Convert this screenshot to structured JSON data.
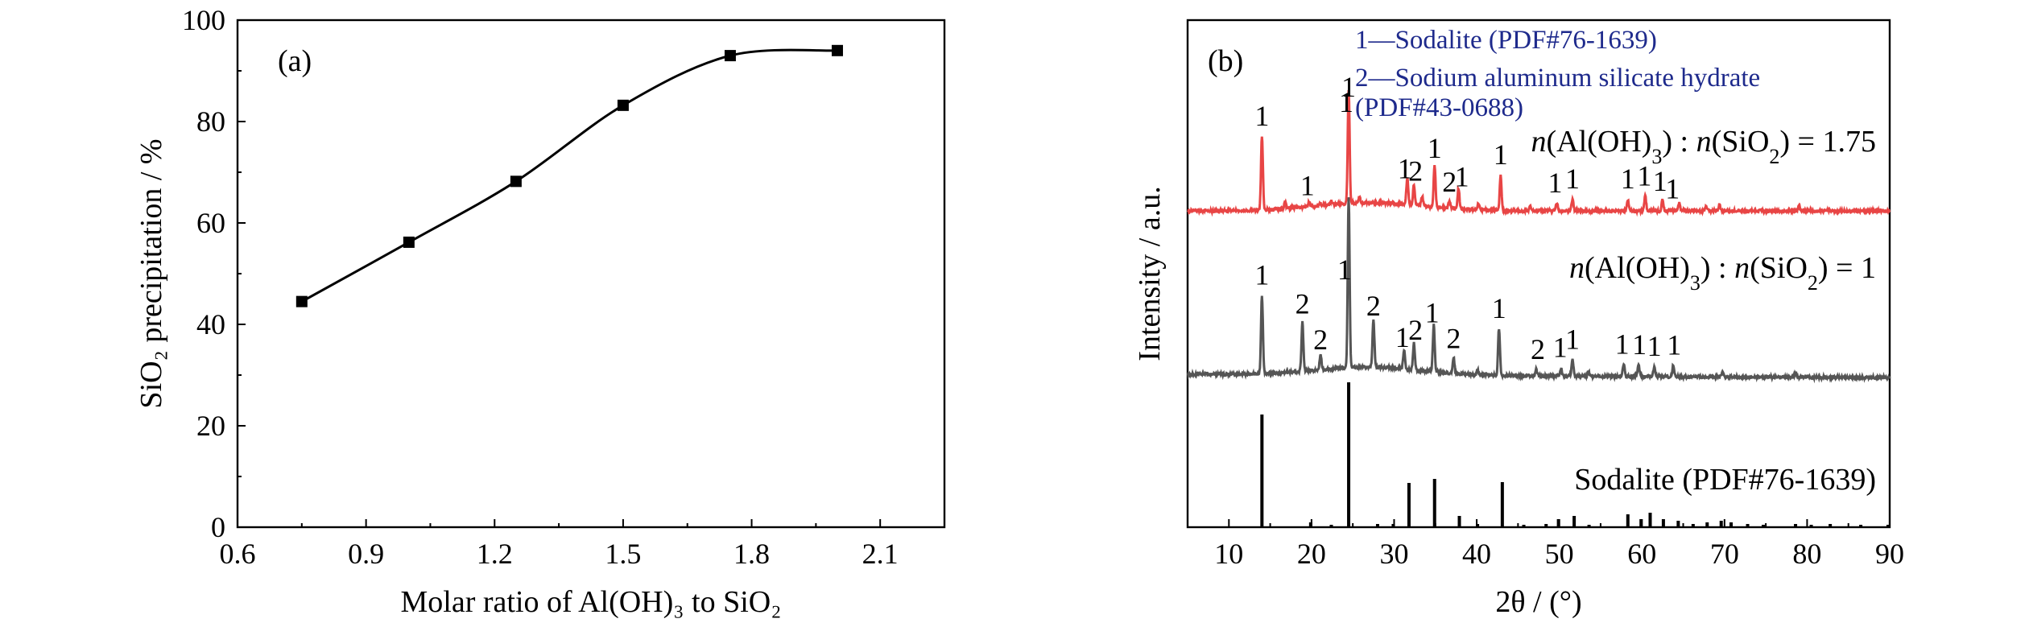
{
  "chart_data": [
    {
      "type": "line",
      "panel_label": "(a)",
      "xlabel": "Molar ratio of Al(OH)₃ to SiO₂",
      "ylabel": "SiO₂ precipitation / %",
      "xlim": [
        0.6,
        2.25
      ],
      "ylim": [
        0,
        100
      ],
      "xticks": [
        "0.6",
        "0.9",
        "1.2",
        "1.5",
        "1.8",
        "2.1"
      ],
      "yticks": [
        "0",
        "20",
        "40",
        "60",
        "80",
        "100"
      ],
      "x": [
        0.75,
        1.0,
        1.25,
        1.5,
        1.75,
        2.0
      ],
      "values": [
        44.5,
        56.2,
        68.2,
        83.2,
        93.0,
        94.0
      ],
      "marker": "square",
      "fit_curve": "smooth",
      "line_color": "#000000"
    },
    {
      "type": "line",
      "panel_label": "(b)",
      "xlabel": "2θ / (°)",
      "ylabel": "Intensity / a.u.",
      "xlim": [
        5,
        90
      ],
      "xticks": [
        "10",
        "20",
        "30",
        "40",
        "50",
        "60",
        "70",
        "80",
        "90"
      ],
      "legend": [
        "1—Sodalite (PDF#76-1639)",
        "2—Sodium aluminum silicate hydrate",
        "(PDF#43-0688)"
      ],
      "legend_color": "#1e2a8c",
      "series": [
        {
          "label_prefix": "n",
          "label_main": "(Al(OH)",
          "label_sub": "3",
          "label_mid": ") : ",
          "label_prefix2": "n",
          "label_main2": "(SiO",
          "label_sub2": "2",
          "label_end": ") = 1.75",
          "color": "#e84545",
          "peaks": [
            [
              14.0,
              92
            ],
            [
              16.8,
              8
            ],
            [
              19.7,
              6
            ],
            [
              21.0,
              4
            ],
            [
              22.4,
              5
            ],
            [
              24.5,
              140
            ],
            [
              25.8,
              8
            ],
            [
              31.6,
              34
            ],
            [
              32.4,
              26
            ],
            [
              33.4,
              12
            ],
            [
              34.9,
              52
            ],
            [
              36.7,
              10
            ],
            [
              37.8,
              26
            ],
            [
              40.2,
              8
            ],
            [
              42.9,
              44
            ],
            [
              46.5,
              6
            ],
            [
              49.7,
              10
            ],
            [
              51.6,
              14
            ],
            [
              58.3,
              14
            ],
            [
              60.4,
              18
            ],
            [
              62.5,
              14
            ],
            [
              64.5,
              10
            ],
            [
              67.8,
              5
            ],
            [
              69.4,
              8
            ],
            [
              79.0,
              6
            ]
          ],
          "labels": [
            {
              "t": "1",
              "x": 14.0
            },
            {
              "t": "1",
              "x": 19.5
            },
            {
              "t": "1",
              "x": 24.2
            },
            {
              "t": "1",
              "x": 24.5
            },
            {
              "t": "1",
              "x": 31.3
            },
            {
              "t": "2",
              "x": 32.6
            },
            {
              "t": "1",
              "x": 34.9
            },
            {
              "t": "2",
              "x": 36.7
            },
            {
              "t": "1",
              "x": 38.2
            },
            {
              "t": "1",
              "x": 42.9
            },
            {
              "t": "1",
              "x": 49.5
            },
            {
              "t": "1",
              "x": 51.6
            },
            {
              "t": "1",
              "x": 58.3
            },
            {
              "t": "1",
              "x": 60.3
            },
            {
              "t": "1",
              "x": 62.2
            },
            {
              "t": "1",
              "x": 63.7
            }
          ]
        },
        {
          "label_prefix": "n",
          "label_main": "(Al(OH)",
          "label_sub": "3",
          "label_mid": ") : ",
          "label_prefix2": "n",
          "label_main2": "(SiO",
          "label_sub2": "2",
          "label_end": ") = 1",
          "color": "#555555",
          "peaks": [
            [
              14.0,
              98
            ],
            [
              18.9,
              62
            ],
            [
              21.1,
              18
            ],
            [
              24.5,
              210
            ],
            [
              27.5,
              60
            ],
            [
              31.2,
              24
            ],
            [
              32.4,
              34
            ],
            [
              34.8,
              58
            ],
            [
              37.2,
              20
            ],
            [
              40.1,
              6
            ],
            [
              42.7,
              58
            ],
            [
              47.2,
              8
            ],
            [
              50.2,
              10
            ],
            [
              51.6,
              20
            ],
            [
              53.5,
              6
            ],
            [
              57.8,
              16
            ],
            [
              59.6,
              14
            ],
            [
              61.5,
              12
            ],
            [
              63.8,
              14
            ],
            [
              69.8,
              6
            ],
            [
              78.6,
              6
            ]
          ],
          "labels": [
            {
              "t": "1",
              "x": 14.0
            },
            {
              "t": "2",
              "x": 18.9
            },
            {
              "t": "2",
              "x": 21.1
            },
            {
              "t": "1",
              "x": 24.0
            },
            {
              "t": "2",
              "x": 27.5
            },
            {
              "t": "1",
              "x": 31.0
            },
            {
              "t": "2",
              "x": 32.6
            },
            {
              "t": "1",
              "x": 34.6
            },
            {
              "t": "2",
              "x": 37.2
            },
            {
              "t": "1",
              "x": 42.7
            },
            {
              "t": "2",
              "x": 47.4
            },
            {
              "t": "1",
              "x": 50.1
            },
            {
              "t": "1",
              "x": 51.6
            },
            {
              "t": "1",
              "x": 57.6
            },
            {
              "t": "1",
              "x": 59.7
            },
            {
              "t": "1",
              "x": 61.5
            },
            {
              "t": "1",
              "x": 63.9
            }
          ]
        },
        {
          "label": "Sodalite (PDF#76-1639)",
          "type": "reference-sticks",
          "color": "#000000",
          "sticks": [
            [
              14.0,
              140
            ],
            [
              19.9,
              6
            ],
            [
              22.4,
              3
            ],
            [
              24.5,
              180
            ],
            [
              28.0,
              4
            ],
            [
              29.9,
              4
            ],
            [
              31.8,
              55
            ],
            [
              34.9,
              60
            ],
            [
              37.9,
              14
            ],
            [
              40.1,
              4
            ],
            [
              43.1,
              56
            ],
            [
              45.7,
              3
            ],
            [
              48.4,
              4
            ],
            [
              49.9,
              10
            ],
            [
              51.8,
              14
            ],
            [
              53.6,
              3
            ],
            [
              58.3,
              16
            ],
            [
              59.9,
              10
            ],
            [
              61.0,
              18
            ],
            [
              62.6,
              10
            ],
            [
              64.4,
              8
            ],
            [
              66.2,
              4
            ],
            [
              67.9,
              6
            ],
            [
              69.6,
              8
            ],
            [
              70.8,
              6
            ],
            [
              72.8,
              4
            ],
            [
              74.7,
              3
            ],
            [
              78.6,
              4
            ],
            [
              80.5,
              3
            ],
            [
              82.8,
              4
            ],
            [
              86.5,
              3
            ],
            [
              89.8,
              3
            ]
          ]
        }
      ]
    }
  ]
}
